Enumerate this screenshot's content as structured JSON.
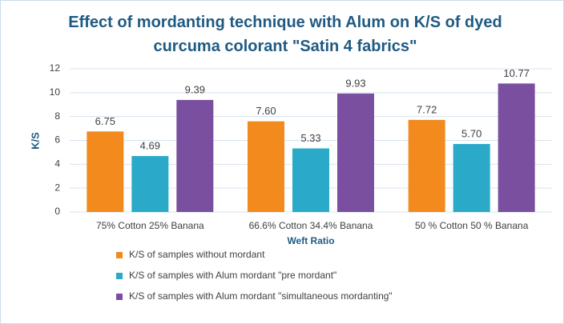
{
  "chart_data": {
    "type": "bar",
    "title": "Effect of mordanting technique with Alum on K/S of dyed curcuma colorant \"Satin 4 fabrics\"",
    "x_label": "Weft Ratio",
    "y_label": "K/S",
    "categories": [
      "75% Cotton 25% Banana",
      "66.6% Cotton 34.4% Banana",
      "50 % Cotton 50 % Banana"
    ],
    "series": [
      {
        "name": "K/S of samples without mordant",
        "color": "#f28a1e",
        "values": [
          6.75,
          7.6,
          7.72
        ],
        "value_labels": [
          "6.75",
          "7.60",
          "7.72"
        ]
      },
      {
        "name": "K/S of samples with Alum mordant \"pre mordant\"",
        "color": "#2aaac8",
        "values": [
          4.69,
          5.33,
          5.7
        ],
        "value_labels": [
          "4.69",
          "5.33",
          "5.70"
        ]
      },
      {
        "name": "K/S of samples with Alum mordant \"simultaneous mordanting\"",
        "color": "#7a4fa0",
        "values": [
          9.39,
          9.93,
          10.77
        ],
        "value_labels": [
          "9.39",
          "9.93",
          "10.77"
        ]
      }
    ],
    "ylim": [
      0,
      12
    ],
    "yticks": [
      0,
      2,
      4,
      6,
      8,
      10,
      12
    ],
    "grid": true,
    "legend": "bottom"
  }
}
